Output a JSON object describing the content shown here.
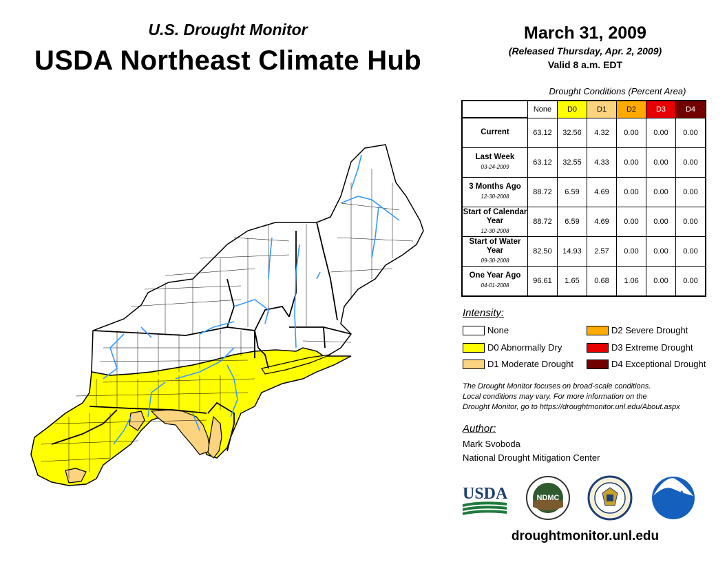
{
  "header": {
    "subtitle": "U.S. Drought Monitor",
    "title": "USDA Northeast Climate Hub"
  },
  "date": {
    "main": "March 31, 2009",
    "released": "(Released Thursday, Apr. 2, 2009)",
    "valid": "Valid 8 a.m. EDT"
  },
  "conditions": {
    "caption": "Drought Conditions (Percent Area)",
    "columns": [
      {
        "label": "None",
        "color": "#ffffff"
      },
      {
        "label": "D0",
        "color": "#ffff00"
      },
      {
        "label": "D1",
        "color": "#fcd37f"
      },
      {
        "label": "D2",
        "color": "#ffaa00"
      },
      {
        "label": "D3",
        "color": "#e60000"
      },
      {
        "label": "D4",
        "color": "#730000"
      }
    ],
    "rows": [
      {
        "label": "Current",
        "date": "",
        "values": [
          "63.12",
          "32.56",
          "4.32",
          "0.00",
          "0.00",
          "0.00"
        ]
      },
      {
        "label": "Last Week",
        "date": "03-24-2009",
        "values": [
          "63.12",
          "32.55",
          "4.33",
          "0.00",
          "0.00",
          "0.00"
        ]
      },
      {
        "label": "3 Months Ago",
        "date": "12-30-2008",
        "values": [
          "88.72",
          "6.59",
          "4.69",
          "0.00",
          "0.00",
          "0.00"
        ]
      },
      {
        "label": "Start of Calendar Year",
        "date": "12-30-2008",
        "values": [
          "88.72",
          "6.59",
          "4.69",
          "0.00",
          "0.00",
          "0.00"
        ]
      },
      {
        "label": "Start of Water Year",
        "date": "09-30-2008",
        "values": [
          "82.50",
          "14.93",
          "2.57",
          "0.00",
          "0.00",
          "0.00"
        ]
      },
      {
        "label": "One Year Ago",
        "date": "04-01-2008",
        "values": [
          "96.61",
          "1.65",
          "0.68",
          "1.06",
          "0.00",
          "0.00"
        ]
      }
    ]
  },
  "legend": {
    "title": "Intensity:",
    "items": [
      {
        "label": "None",
        "color": "#ffffff"
      },
      {
        "label": "D0 Abnormally Dry",
        "color": "#ffff00"
      },
      {
        "label": "D1 Moderate Drought",
        "color": "#fcd37f"
      },
      {
        "label": "D2 Severe Drought",
        "color": "#ffaa00"
      },
      {
        "label": "D3 Extreme Drought",
        "color": "#e60000"
      },
      {
        "label": "D4 Exceptional Drought",
        "color": "#730000"
      }
    ]
  },
  "note": {
    "line1": "The Drought Monitor focuses on broad-scale conditions.",
    "line2": "Local conditions may vary. For more information on the",
    "line3": "Drought Monitor, go to https://droughtmonitor.unl.edu/About.aspx"
  },
  "author": {
    "title": "Author:",
    "name": "Mark Svoboda",
    "org": "National Drought Mitigation Center"
  },
  "logos": {
    "usda": "USDA",
    "ndmc": "NDMC",
    "noaa": "NOAA"
  },
  "footer": {
    "url": "droughtmonitor.unl.edu"
  },
  "map": {
    "colors": {
      "none": "#ffffff",
      "d0": "#ffff00",
      "d1": "#fcd37f",
      "water": "#3399ff",
      "border": "#000000"
    }
  }
}
